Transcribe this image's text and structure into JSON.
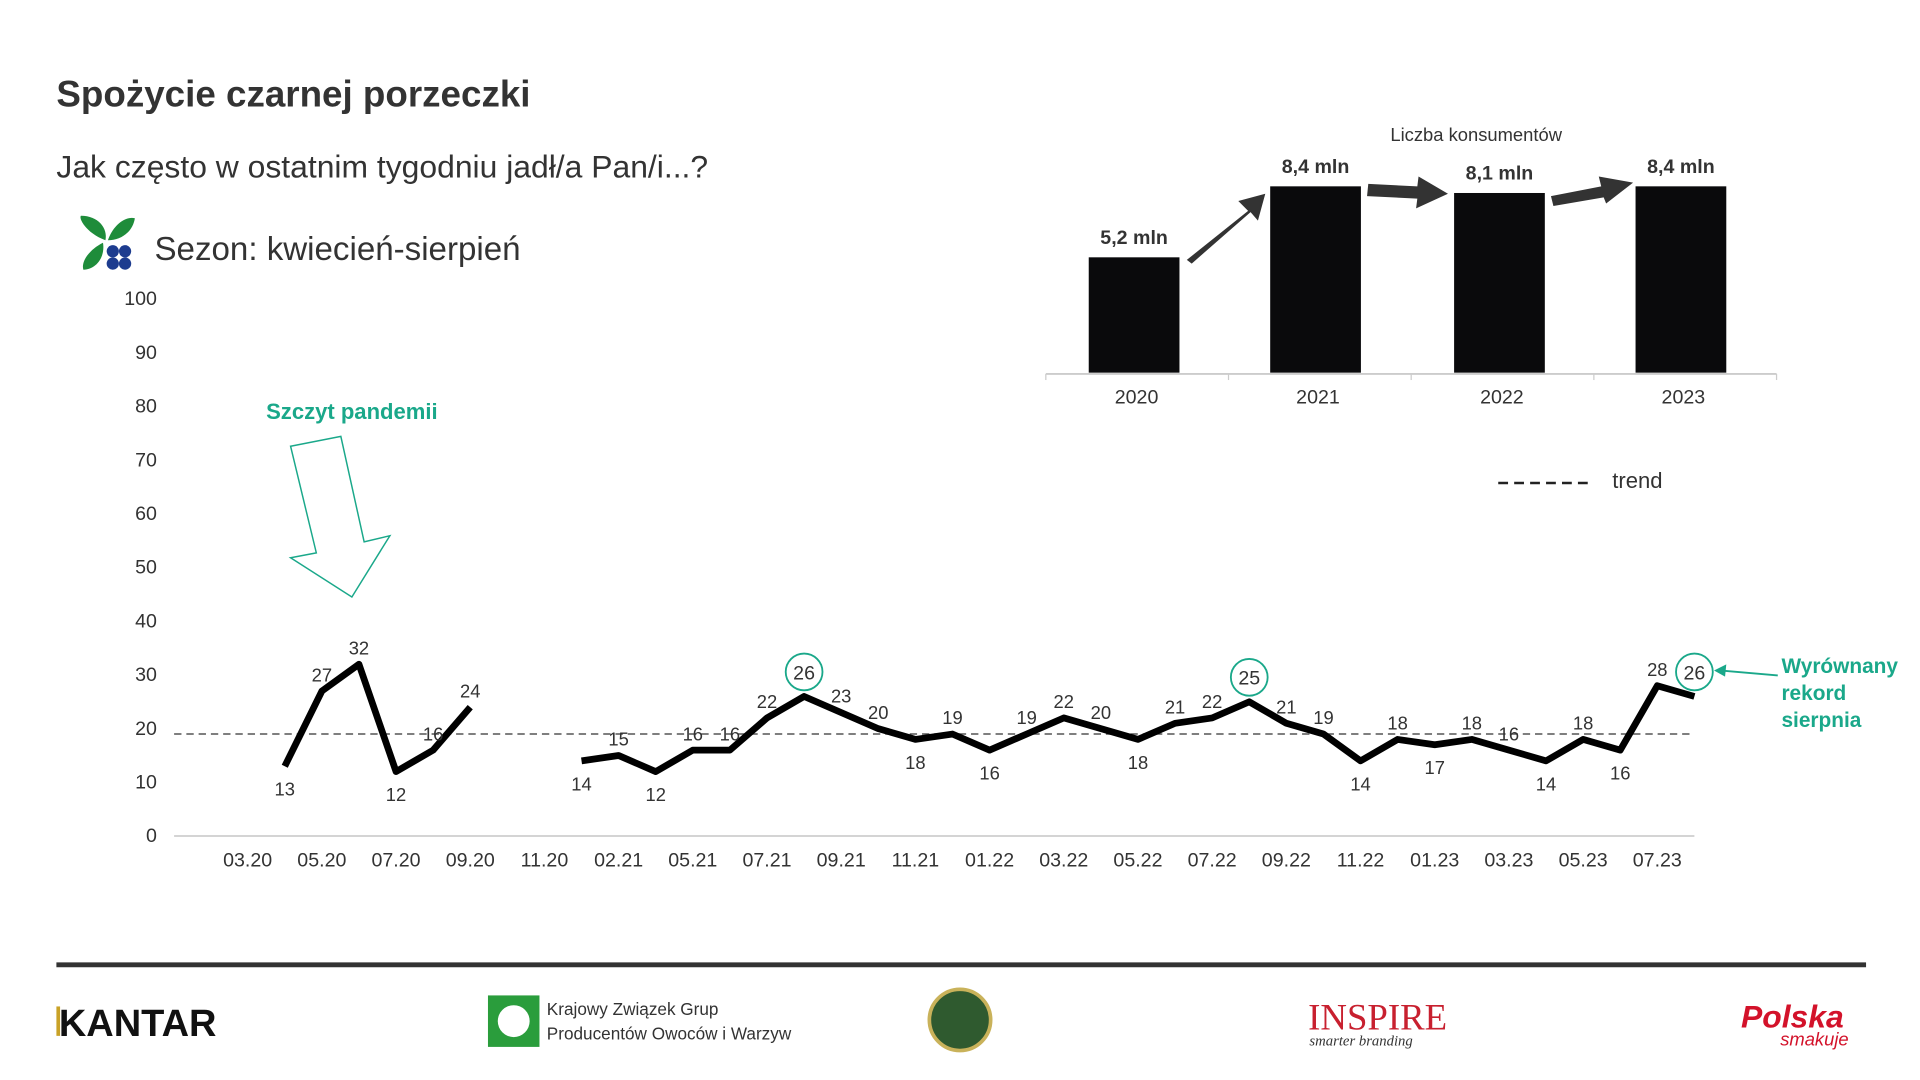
{
  "header": {
    "title": "Spożycie czarnej porzeczki",
    "subtitle": "Jak często w ostatnim tygodniu jadł/a Pan/i...?",
    "season": "Sezon: kwiecień-sierpień"
  },
  "chart_data": [
    {
      "type": "line",
      "categories": [
        "03.20",
        null,
        "05.20",
        null,
        "07.20",
        null,
        "09.20",
        null,
        "11.20",
        null,
        "02.21",
        null,
        "05.21",
        null,
        "07.21",
        null,
        "09.21",
        null,
        "11.21",
        null,
        "01.22",
        null,
        "03.22",
        null,
        "05.22",
        null,
        "07.22",
        null,
        "09.22",
        null,
        "11.22",
        null,
        "01.23",
        null,
        "03.23",
        null,
        "05.23",
        null,
        "07.23",
        null
      ],
      "values": [
        null,
        13,
        27,
        32,
        12,
        16,
        24,
        null,
        null,
        14,
        15,
        12,
        16,
        16,
        22,
        26,
        23,
        20,
        18,
        19,
        16,
        19,
        22,
        20,
        18,
        21,
        22,
        25,
        21,
        19,
        14,
        18,
        17,
        18,
        16,
        14,
        18,
        16,
        28,
        26
      ],
      "color": "#000000",
      "ylim": [
        0,
        100
      ],
      "yticks": [
        0,
        10,
        20,
        30,
        40,
        50,
        60,
        70,
        80,
        90,
        100
      ],
      "trend": {
        "name": "trend",
        "value": 19,
        "color": "#555555"
      },
      "circled_points": [
        15,
        27,
        39
      ],
      "circle_color": "#1aa88a",
      "annotations": [
        {
          "text": "Szczyt pandemii",
          "color": "#1aa88a"
        },
        {
          "lines": [
            "Wyrównany",
            "rekord",
            "sierpnia"
          ],
          "color": "#1aa88a"
        }
      ]
    },
    {
      "type": "bar",
      "title": "Liczba konsumentów",
      "categories": [
        "2020",
        "2021",
        "2022",
        "2023"
      ],
      "values": [
        5.2,
        8.4,
        8.1,
        8.4
      ],
      "value_labels": [
        "5,2 mln",
        "8,4 mln",
        "8,1 mln",
        "8,4 mln"
      ],
      "color": "#0a0a0c"
    }
  ],
  "footer": {
    "kantar": "KANTAR",
    "kzgpow": [
      "Krajowy Związek Grup",
      "Producentów Owoców i Warzyw"
    ],
    "inspire": "INSPIRE",
    "inspire_tagline": "smarter branding",
    "polska": "Polska",
    "smakuje": "smakuje"
  }
}
